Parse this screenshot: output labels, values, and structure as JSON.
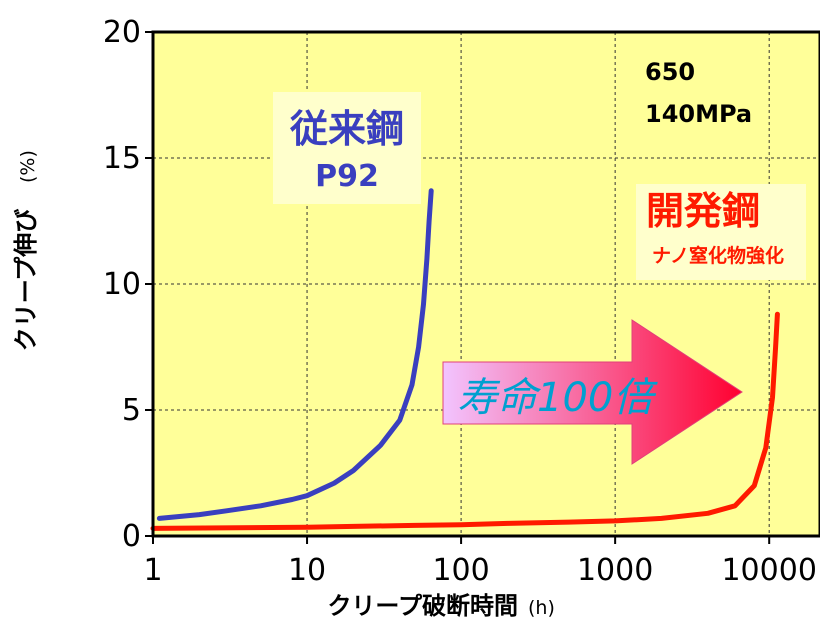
{
  "chart_data": {
    "type": "line",
    "x_scale": "log",
    "xlim": [
      1,
      10000
    ],
    "ylim": [
      0,
      20
    ],
    "x_ticks": [
      "1",
      "10",
      "100",
      "1000",
      "10000"
    ],
    "y_ticks": [
      "0",
      "5",
      "10",
      "15",
      "20"
    ],
    "xlabel": "クリープ破断時間",
    "xlabel_unit": "(h)",
    "ylabel": "クリープ伸び",
    "ylabel_unit": "(%)",
    "grid": true,
    "background_color": "#ffff99",
    "conditions": [
      "650",
      "140MPa"
    ],
    "series": [
      {
        "name": "従来鋼",
        "sub_name": "P92",
        "color": "#3a3fbf",
        "x": [
          1.1,
          2,
          3,
          5,
          8,
          10,
          15,
          20,
          30,
          40,
          48,
          53,
          57,
          60,
          62,
          64
        ],
        "y": [
          0.7,
          0.85,
          1.0,
          1.2,
          1.45,
          1.6,
          2.1,
          2.6,
          3.6,
          4.6,
          6.0,
          7.5,
          9.2,
          11.0,
          12.5,
          13.7
        ]
      },
      {
        "name": "開発鋼",
        "sub_name": "ナノ窒化物強化",
        "color": "#ff1a00",
        "x": [
          1,
          10,
          20,
          50,
          100,
          200,
          500,
          1000,
          2000,
          4000,
          6000,
          8000,
          9500,
          10500,
          11000,
          11300
        ],
        "y": [
          0.3,
          0.35,
          0.38,
          0.42,
          0.45,
          0.5,
          0.55,
          0.6,
          0.7,
          0.9,
          1.2,
          2.0,
          3.5,
          5.5,
          7.5,
          8.8
        ]
      }
    ],
    "annotation": {
      "text": "寿命100倍",
      "style": "arrow-right",
      "colors": [
        "#f0c0ff",
        "#ff0040"
      ]
    }
  }
}
